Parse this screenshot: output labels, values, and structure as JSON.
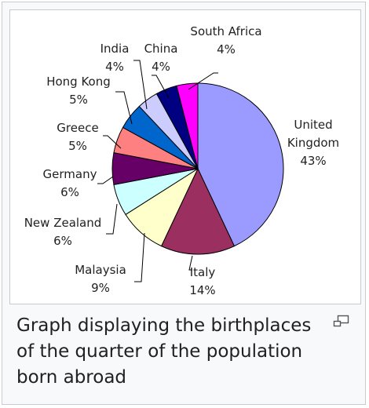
{
  "chart_data": {
    "type": "pie",
    "title": "",
    "slices": [
      {
        "label": "United Kingdom",
        "label_lines": [
          "United",
          "Kingdom"
        ],
        "value": 43,
        "value_text": "43%",
        "color": "#9b9bff"
      },
      {
        "label": "Italy",
        "label_lines": [
          "Italy"
        ],
        "value": 14,
        "value_text": "14%",
        "color": "#9b2f5f"
      },
      {
        "label": "Malaysia",
        "label_lines": [
          "Malaysia"
        ],
        "value": 9,
        "value_text": "9%",
        "color": "#ffffcc"
      },
      {
        "label": "New Zealand",
        "label_lines": [
          "New Zealand"
        ],
        "value": 6,
        "value_text": "6%",
        "color": "#ccffff"
      },
      {
        "label": "Germany",
        "label_lines": [
          "Germany"
        ],
        "value": 6,
        "value_text": "6%",
        "color": "#660066"
      },
      {
        "label": "Greece",
        "label_lines": [
          "Greece"
        ],
        "value": 5,
        "value_text": "5%",
        "color": "#ff8080"
      },
      {
        "label": "Hong Kong",
        "label_lines": [
          "Hong Kong"
        ],
        "value": 5,
        "value_text": "5%",
        "color": "#0066cc"
      },
      {
        "label": "India",
        "label_lines": [
          "India"
        ],
        "value": 4,
        "value_text": "4%",
        "color": "#ccccff"
      },
      {
        "label": "China",
        "label_lines": [
          "China"
        ],
        "value": 4,
        "value_text": "4%",
        "color": "#000080"
      },
      {
        "label": "South Africa",
        "label_lines": [
          "South Africa"
        ],
        "value": 4,
        "value_text": "4%",
        "color": "#ff00ff"
      }
    ]
  },
  "caption": "Graph displaying the birthplaces of the quarter of the population born abroad",
  "enlarge_icon": "enlarge-icon"
}
